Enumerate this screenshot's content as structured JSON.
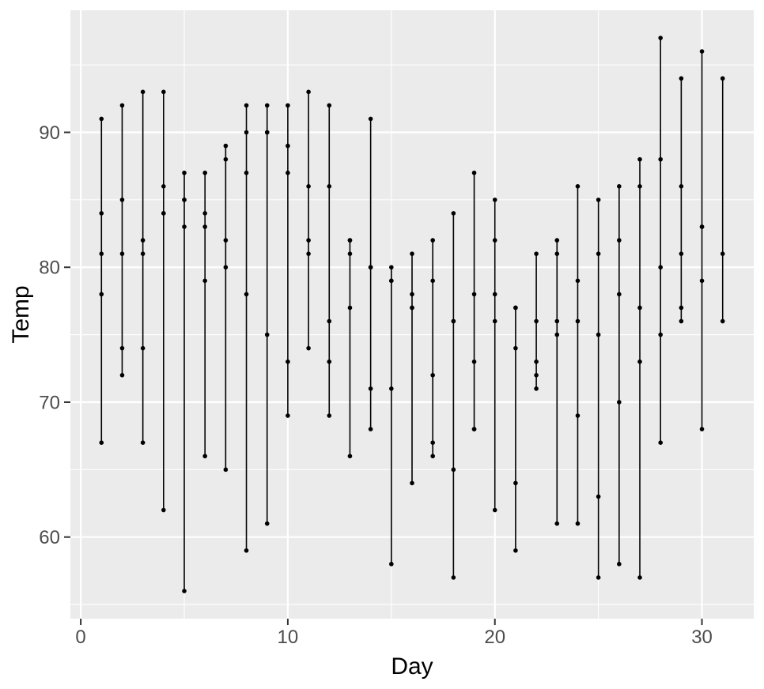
{
  "chart_data": {
    "type": "scatter",
    "title": "",
    "xlabel": "Day",
    "ylabel": "Temp",
    "xlim": [
      -0.5,
      32.5
    ],
    "ylim": [
      53.95,
      99.05
    ],
    "x_ticks": [
      0,
      10,
      20,
      30
    ],
    "y_ticks": [
      60,
      70,
      80,
      90
    ],
    "x_minor_ticks": [
      5,
      15,
      25
    ],
    "y_minor_ticks": [
      55,
      65,
      75,
      85,
      95
    ],
    "grid": "major+minor",
    "legend": "none",
    "mark": "one vertical segment per day spanning min to max temp, with a point at every temp value",
    "days": [
      {
        "day": 1,
        "temps": [
          67,
          78,
          84,
          81,
          91
        ]
      },
      {
        "day": 2,
        "temps": [
          72,
          74,
          85,
          81,
          92
        ]
      },
      {
        "day": 3,
        "temps": [
          74,
          67,
          81,
          82,
          93
        ]
      },
      {
        "day": 4,
        "temps": [
          62,
          84,
          84,
          86,
          93
        ]
      },
      {
        "day": 5,
        "temps": [
          56,
          85,
          83,
          85,
          87
        ]
      },
      {
        "day": 6,
        "temps": [
          66,
          79,
          83,
          87,
          84
        ]
      },
      {
        "day": 7,
        "temps": [
          65,
          82,
          88,
          89,
          80
        ]
      },
      {
        "day": 8,
        "temps": [
          59,
          87,
          92,
          90,
          78
        ]
      },
      {
        "day": 9,
        "temps": [
          61,
          90,
          92,
          90,
          75
        ]
      },
      {
        "day": 10,
        "temps": [
          69,
          87,
          89,
          92,
          73
        ]
      },
      {
        "day": 11,
        "temps": [
          74,
          93,
          82,
          86,
          81
        ]
      },
      {
        "day": 12,
        "temps": [
          69,
          92,
          73,
          86,
          76
        ]
      },
      {
        "day": 13,
        "temps": [
          66,
          82,
          81,
          82,
          77
        ]
      },
      {
        "day": 14,
        "temps": [
          68,
          80,
          91,
          80,
          71
        ]
      },
      {
        "day": 15,
        "temps": [
          58,
          79,
          80,
          79,
          71
        ]
      },
      {
        "day": 16,
        "temps": [
          64,
          77,
          81,
          77,
          78
        ]
      },
      {
        "day": 17,
        "temps": [
          66,
          72,
          82,
          79,
          67
        ]
      },
      {
        "day": 18,
        "temps": [
          57,
          65,
          84,
          76,
          76
        ]
      },
      {
        "day": 19,
        "temps": [
          68,
          73,
          87,
          78,
          68
        ]
      },
      {
        "day": 20,
        "temps": [
          62,
          76,
          85,
          78,
          82
        ]
      },
      {
        "day": 21,
        "temps": [
          59,
          77,
          74,
          77,
          64
        ]
      },
      {
        "day": 22,
        "temps": [
          73,
          76,
          81,
          72,
          71
        ]
      },
      {
        "day": 23,
        "temps": [
          61,
          76,
          82,
          75,
          81
        ]
      },
      {
        "day": 24,
        "temps": [
          61,
          76,
          86,
          79,
          69
        ]
      },
      {
        "day": 25,
        "temps": [
          57,
          75,
          85,
          81,
          63
        ]
      },
      {
        "day": 26,
        "temps": [
          58,
          78,
          82,
          86,
          70
        ]
      },
      {
        "day": 27,
        "temps": [
          57,
          73,
          86,
          88,
          77
        ]
      },
      {
        "day": 28,
        "temps": [
          67,
          80,
          88,
          97,
          75
        ]
      },
      {
        "day": 29,
        "temps": [
          81,
          77,
          86,
          94,
          76
        ]
      },
      {
        "day": 30,
        "temps": [
          79,
          83,
          83,
          96,
          68
        ]
      },
      {
        "day": 31,
        "temps": [
          76,
          81,
          94
        ]
      }
    ],
    "colors": {
      "panel_background": "#EBEBEB",
      "gridline": "#FFFFFF",
      "point": "#000000",
      "segment": "#000000",
      "tick_mark": "#333333",
      "tick_label": "#4D4D4D",
      "axis_title": "#000000",
      "figure_background": "#FFFFFF"
    }
  }
}
